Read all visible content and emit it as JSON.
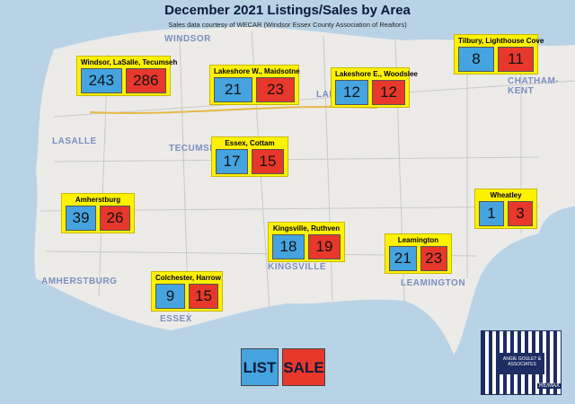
{
  "header": {
    "title": "December 2021 Listings/Sales by Area",
    "subtitle": "Sales data courtesy of WECAR (Windsor Essex County Association of Realtors)"
  },
  "areas": [
    {
      "name": "Windsor, LaSalle, Tecumseh",
      "list": "243",
      "sale": "286"
    },
    {
      "name": "Lakeshore W., Maidsotne",
      "list": "21",
      "sale": "23"
    },
    {
      "name": "Lakeshore E., Woodslee",
      "list": "12",
      "sale": "12"
    },
    {
      "name": "Tilbury, Lighthouse Cove",
      "list": "8",
      "sale": "11"
    },
    {
      "name": "Essex, Cottam",
      "list": "17",
      "sale": "15"
    },
    {
      "name": "Amherstburg",
      "list": "39",
      "sale": "26"
    },
    {
      "name": "Wheatley",
      "list": "1",
      "sale": "3"
    },
    {
      "name": "Kingsville, Ruthven",
      "list": "18",
      "sale": "19"
    },
    {
      "name": "Leamington",
      "list": "21",
      "sale": "23"
    },
    {
      "name": "Colchester, Harrow",
      "list": "9",
      "sale": "15"
    }
  ],
  "places": [
    "WINDSOR",
    "LASALLE",
    "TECUMSEH",
    "AMHERSTBURG",
    "ESSEX",
    "KINGSVILLE",
    "LEAMINGTON",
    "CHATHAM-KENT",
    "LAK"
  ],
  "legend": {
    "list": "LIST",
    "sale": "SALE"
  },
  "logo": {
    "name": "ANGIE GOULET & ASSOCIATES",
    "brand": "RE/MAX"
  }
}
